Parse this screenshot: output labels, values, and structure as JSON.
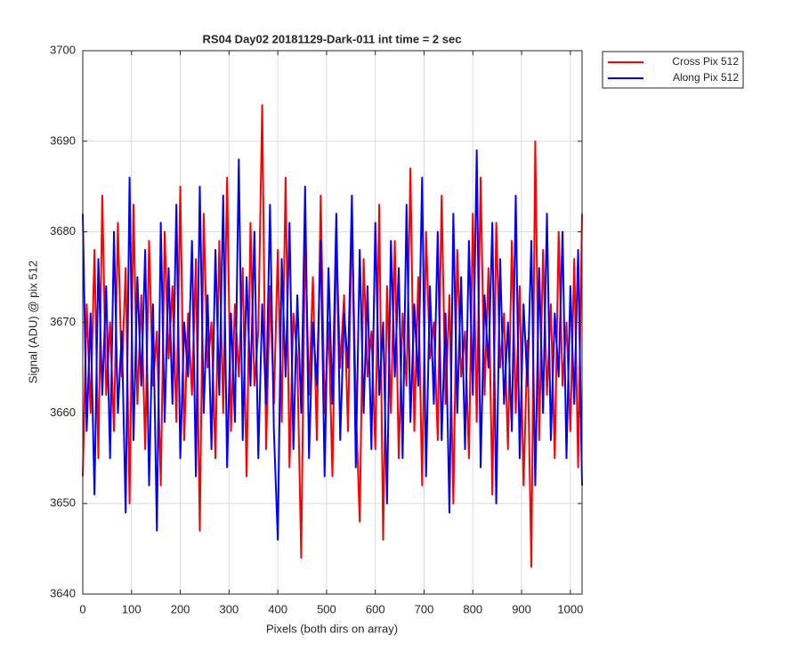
{
  "chart_data": {
    "type": "line",
    "title": "RS04 Day02 20181129-Dark-011 int time = 2 sec",
    "xlabel": "Pixels (both dirs on array)",
    "ylabel": "Signal (ADU) @ pix 512",
    "xlim": [
      0,
      1024
    ],
    "ylim": [
      3640,
      3700
    ],
    "xticks": [
      0,
      100,
      200,
      300,
      400,
      500,
      600,
      700,
      800,
      900,
      1000
    ],
    "yticks": [
      3640,
      3650,
      3660,
      3670,
      3680,
      3690,
      3700
    ],
    "grid": true,
    "legend": "outside-top-right",
    "x": [
      0,
      8,
      16,
      24,
      32,
      40,
      48,
      56,
      64,
      72,
      80,
      88,
      96,
      104,
      112,
      120,
      128,
      136,
      144,
      152,
      160,
      168,
      176,
      184,
      192,
      200,
      208,
      216,
      224,
      232,
      240,
      248,
      256,
      264,
      272,
      280,
      288,
      296,
      304,
      312,
      320,
      328,
      336,
      344,
      352,
      360,
      368,
      376,
      384,
      392,
      400,
      408,
      416,
      424,
      432,
      440,
      448,
      456,
      464,
      472,
      480,
      488,
      496,
      504,
      512,
      520,
      528,
      536,
      544,
      552,
      560,
      568,
      576,
      584,
      592,
      600,
      608,
      616,
      624,
      632,
      640,
      648,
      656,
      664,
      672,
      680,
      688,
      696,
      704,
      712,
      720,
      728,
      736,
      744,
      752,
      760,
      768,
      776,
      784,
      792,
      800,
      808,
      816,
      824,
      832,
      840,
      848,
      856,
      864,
      872,
      880,
      888,
      896,
      904,
      912,
      920,
      928,
      936,
      944,
      952,
      960,
      968,
      976,
      984,
      992,
      1000,
      1008,
      1016,
      1024
    ],
    "series": [
      {
        "name": "Cross Pix 512",
        "color": "#ff0000",
        "values": [
          3653,
          3672,
          3660,
          3678,
          3655,
          3684,
          3662,
          3670,
          3658,
          3681,
          3664,
          3676,
          3650,
          3683,
          3661,
          3673,
          3656,
          3679,
          3663,
          3669,
          3652,
          3680,
          3666,
          3674,
          3659,
          3685,
          3657,
          3671,
          3662,
          3677,
          3647,
          3682,
          3665,
          3670,
          3655,
          3679,
          3660,
          3686,
          3658,
          3672,
          3664,
          3676,
          3653,
          3681,
          3663,
          3669,
          3694,
          3656,
          3674,
          3661,
          3678,
          3659,
          3686,
          3654,
          3671,
          3666,
          3644,
          3680,
          3662,
          3675,
          3657,
          3684,
          3660,
          3670,
          3653,
          3679,
          3665,
          3673,
          3658,
          3682,
          3661,
          3648,
          3677,
          3664,
          3669,
          3656,
          3683,
          3646,
          3674,
          3660,
          3679,
          3655,
          3671,
          3663,
          3687,
          3658,
          3675,
          3652,
          3680,
          3666,
          3670,
          3657,
          3684,
          3661,
          3673,
          3650,
          3678,
          3664,
          3669,
          3655,
          3682,
          3659,
          3686,
          3662,
          3676,
          3651,
          3681,
          3665,
          3671,
          3656,
          3679,
          3660,
          3674,
          3652,
          3668,
          3643,
          3690,
          3657,
          3678,
          3662,
          3672,
          3655,
          3680,
          3663,
          3670,
          3658,
          3677,
          3654,
          3682
        ]
      },
      {
        "name": "Along Pix 512",
        "color": "#0000ff",
        "values": [
          3682,
          3658,
          3671,
          3651,
          3677,
          3662,
          3674,
          3655,
          3680,
          3660,
          3669,
          3649,
          3686,
          3657,
          3675,
          3663,
          3678,
          3652,
          3672,
          3647,
          3681,
          3659,
          3676,
          3661,
          3683,
          3655,
          3670,
          3664,
          3679,
          3653,
          3685,
          3660,
          3673,
          3656,
          3678,
          3662,
          3684,
          3654,
          3671,
          3659,
          3688,
          3657,
          3675,
          3663,
          3680,
          3655,
          3672,
          3661,
          3683,
          3658,
          3646,
          3677,
          3664,
          3681,
          3656,
          3673,
          3660,
          3685,
          3655,
          3670,
          3663,
          3679,
          3653,
          3676,
          3661,
          3682,
          3657,
          3671,
          3665,
          3684,
          3654,
          3678,
          3660,
          3674,
          3656,
          3681,
          3662,
          3670,
          3650,
          3679,
          3664,
          3676,
          3655,
          3683,
          3659,
          3672,
          3663,
          3686,
          3653,
          3674,
          3661,
          3680,
          3657,
          3671,
          3649,
          3682,
          3660,
          3675,
          3656,
          3679,
          3662,
          3689,
          3654,
          3673,
          3665,
          3681,
          3650,
          3677,
          3661,
          3670,
          3658,
          3684,
          3655,
          3672,
          3663,
          3679,
          3652,
          3676,
          3660,
          3682,
          3657,
          3671,
          3664,
          3680,
          3655,
          3674,
          3661,
          3678,
          3652
        ]
      }
    ]
  }
}
